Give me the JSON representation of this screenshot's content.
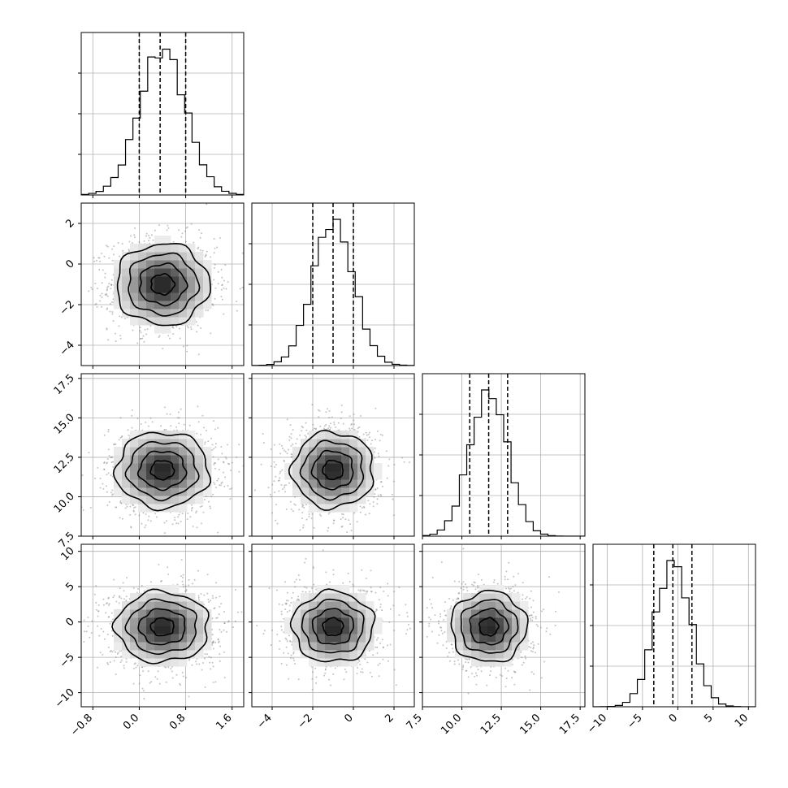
{
  "chart_data": {
    "type": "corner",
    "parameters": [
      {
        "ticks": [
          -0.8,
          0.0,
          0.8,
          1.6
        ],
        "tick_labels": [
          "−0.8",
          "0.0",
          "0.8",
          "1.6"
        ],
        "range": [
          -1.0,
          1.8
        ],
        "mean": 0.4,
        "std": 0.4,
        "quantiles": [
          0.0,
          0.36,
          0.8
        ]
      },
      {
        "ticks": [
          -4,
          -2,
          0,
          2
        ],
        "tick_labels": [
          "−4",
          "−2",
          "0",
          "2"
        ],
        "range": [
          -5.0,
          3.0
        ],
        "mean": -1.0,
        "std": 1.0,
        "quantiles": [
          -2.0,
          -1.0,
          0.0
        ]
      },
      {
        "ticks": [
          7.5,
          10.0,
          12.5,
          15.0,
          17.5
        ],
        "tick_labels": [
          "7.5",
          "10.0",
          "12.5",
          "15.0",
          "17.5"
        ],
        "range": [
          7.5,
          17.8
        ],
        "mean": 11.7,
        "std": 1.2,
        "quantiles": [
          10.5,
          11.7,
          12.9
        ]
      },
      {
        "ticks": [
          -10,
          -5,
          0,
          5,
          10
        ],
        "tick_labels": [
          "−10",
          "−5",
          "0",
          "5",
          "10"
        ],
        "range": [
          -12.0,
          11.0
        ],
        "mean": -0.7,
        "std": 2.5,
        "quantiles": [
          -3.4,
          -0.7,
          2.0
        ]
      }
    ],
    "histogram_peak_counts": [
      1,
      1,
      1,
      1
    ],
    "grid": true,
    "contour_levels_sigma": [
      0.5,
      1.0,
      1.5,
      2.0
    ],
    "scatter_samples": 9000
  }
}
